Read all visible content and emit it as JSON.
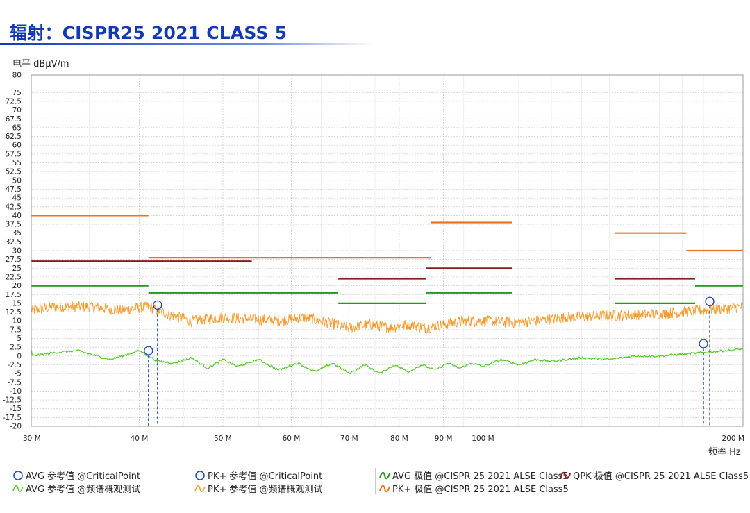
{
  "page": {
    "title": "辐射：CISPR25 2021 CLASS 5",
    "y_unit_label": "电平 dBµV/m",
    "x_unit_label": "频率 Hz"
  },
  "colors": {
    "title": "#1238b8",
    "avg_limit": "#1c9a1c",
    "qpk_limit": "#8b1a1a",
    "pk_limit": "#e8731a",
    "pk_trace": "#f59a2c",
    "avg_trace": "#56cc2c",
    "critical_point": "#1e4bb8",
    "grid": "#c8c8c8"
  },
  "legend": [
    {
      "id": "avg-critical",
      "label": "AVG 参考值 @CriticalPoint",
      "symbol": "circle-icon",
      "color": "#1e4bb8"
    },
    {
      "id": "pk-critical",
      "label": "PK+ 参考值 @CriticalPoint",
      "symbol": "circle-icon",
      "color": "#1e4bb8"
    },
    {
      "id": "avg-limit",
      "label": "AVG 极值 @CISPR 25 2021 ALSE Class5",
      "symbol": "wave-icon",
      "color": "#1c9a1c"
    },
    {
      "id": "qpk-limit",
      "label": "QPK 极值 @CISPR 25 2021 ALSE Class5",
      "symbol": "wave-icon",
      "color": "#8b1a1a"
    },
    {
      "id": "avg-trace",
      "label": "AVG 参考值 @频谱概观测试",
      "symbol": "wave-icon",
      "color": "#56cc2c"
    },
    {
      "id": "pk-trace",
      "label": "PK+ 参考值 @频谱概观测试",
      "symbol": "wave-icon",
      "color": "#f59a2c"
    },
    {
      "id": "pk-limit",
      "label": "PK+ 极值 @CISPR 25 2021 ALSE Class5",
      "symbol": "wave-icon",
      "color": "#e8731a"
    }
  ],
  "chart_data": {
    "type": "line",
    "title": "辐射：CISPR25 2021 CLASS 5",
    "xlabel": "频率 Hz",
    "ylabel": "电平 dBµV/m",
    "x_scale": "log",
    "xlim_mhz": [
      30,
      200
    ],
    "ylim": [
      -20,
      80
    ],
    "grid": true,
    "legend_position": "bottom",
    "y_ticks": [
      80,
      75,
      72.5,
      70,
      67.5,
      65,
      62.5,
      60,
      57.5,
      55,
      52.5,
      50,
      47.5,
      45,
      42.5,
      40,
      37.5,
      35,
      32.5,
      30,
      27.5,
      25,
      22.5,
      20,
      17.5,
      15,
      12.5,
      10,
      7.5,
      5,
      2.5,
      0,
      -2.5,
      -5,
      -7.5,
      -10,
      -12.5,
      -15,
      -17.5,
      -20
    ],
    "x_ticks": [
      {
        "value": 30,
        "label": "30 M"
      },
      {
        "value": 40,
        "label": "40 M"
      },
      {
        "value": 50,
        "label": "50 M"
      },
      {
        "value": 60,
        "label": "60 M"
      },
      {
        "value": 70,
        "label": "70 M"
      },
      {
        "value": 80,
        "label": "80 M"
      },
      {
        "value": 90,
        "label": "90 M"
      },
      {
        "value": 100,
        "label": "100 M"
      },
      {
        "value": 200,
        "label": "200 M"
      }
    ],
    "limit_lines": [
      {
        "name": "PK+ 极值 @CISPR 25 2021 ALSE Class5",
        "color": "#e8731a",
        "segments": [
          {
            "x": [
              30,
              41
            ],
            "y": 40
          },
          {
            "x": [
              41,
              87
            ],
            "y": 28
          },
          {
            "x": [
              87,
              108
            ],
            "y": 38
          },
          {
            "x": [
              142,
              172
            ],
            "y": 35
          },
          {
            "x": [
              172,
              200
            ],
            "y": 30
          }
        ]
      },
      {
        "name": "QPK 极值 @CISPR 25 2021 ALSE Class5",
        "color": "#8b1a1a",
        "segments": [
          {
            "x": [
              30,
              54
            ],
            "y": 27
          },
          {
            "x": [
              68,
              86
            ],
            "y": 22
          },
          {
            "x": [
              86,
              108
            ],
            "y": 25
          },
          {
            "x": [
              142,
              176
            ],
            "y": 22
          }
        ]
      },
      {
        "name": "AVG 极值 @CISPR 25 2021 ALSE Class5",
        "color": "#1c9a1c",
        "segments": [
          {
            "x": [
              30,
              41
            ],
            "y": 20
          },
          {
            "x": [
              41,
              68
            ],
            "y": 18
          },
          {
            "x": [
              68,
              86
            ],
            "y": 15
          },
          {
            "x": [
              86,
              108
            ],
            "y": 18
          },
          {
            "x": [
              142,
              176
            ],
            "y": 15
          },
          {
            "x": [
              176,
              200
            ],
            "y": 20
          }
        ]
      }
    ],
    "series": [
      {
        "name": "PK+ 参考值 @频谱概观测试",
        "color": "#f59a2c",
        "x": [
          30,
          32,
          35,
          38,
          41,
          43,
          46,
          50,
          54,
          58,
          62,
          66,
          70,
          74,
          78,
          82,
          86,
          90,
          95,
          100,
          108,
          115,
          125,
          140,
          160,
          180,
          200
        ],
        "y": [
          13,
          14,
          14,
          13,
          14,
          12,
          10,
          11,
          10.5,
          10,
          11,
          9.5,
          8,
          9,
          8,
          9,
          8,
          9,
          10,
          10,
          9.5,
          10,
          11,
          11.5,
          12,
          13,
          14
        ]
      },
      {
        "name": "AVG 参考值 @频谱概观测试",
        "color": "#56cc2c",
        "x": [
          30,
          32,
          34,
          37,
          40,
          42,
          44,
          46,
          48,
          50,
          52,
          55,
          58,
          61,
          64,
          67,
          70,
          73,
          76,
          79,
          82,
          85,
          88,
          91,
          94,
          97,
          100,
          105,
          110,
          115,
          120,
          130,
          140,
          150,
          160,
          170,
          180,
          190,
          200
        ],
        "y": [
          0,
          1,
          1.5,
          -1,
          1.5,
          -1.5,
          -2,
          -0.5,
          -3.5,
          -1,
          -3,
          -1,
          -4,
          -2,
          -4.5,
          -2,
          -5,
          -2.5,
          -5,
          -2.5,
          -4.5,
          -2.5,
          -4,
          -2,
          -3.5,
          -2,
          -3,
          -1,
          -2.5,
          -1,
          -1.5,
          -0.5,
          -1,
          0,
          0,
          0.5,
          1,
          1.5,
          2
        ]
      }
    ],
    "critical_points": [
      {
        "name": "AVG 参考值 @CriticalPoint",
        "x": 41,
        "y": 1.5
      },
      {
        "name": "PK+ 参考值 @CriticalPoint",
        "x": 42,
        "y": 14.5
      },
      {
        "name": "AVG 参考值 @CriticalPoint",
        "x": 180,
        "y": 3.5
      },
      {
        "name": "PK+ 参考值 @CriticalPoint",
        "x": 183,
        "y": 15.5
      }
    ]
  }
}
